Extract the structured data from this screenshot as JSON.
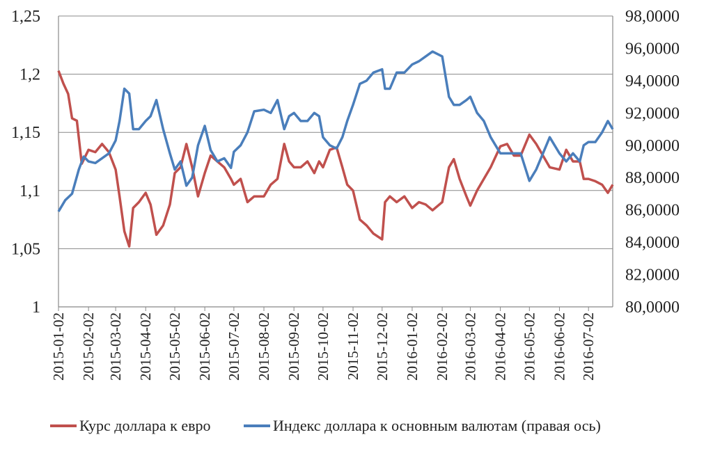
{
  "chart_data": {
    "type": "line",
    "title": "",
    "xlabel": "",
    "x_ticks": [
      "2015-01-02",
      "2015-02-02",
      "2015-03-02",
      "2015-04-02",
      "2015-05-02",
      "2015-06-02",
      "2015-07-02",
      "2015-08-02",
      "2015-09-02",
      "2015-10-02",
      "2015-11-02",
      "2015-12-02",
      "2016-01-02",
      "2016-02-02",
      "2016-03-02",
      "2016-04-02",
      "2016-05-02",
      "2016-06-02",
      "2016-07-02"
    ],
    "x_range": [
      "2015-01-02",
      "2016-07-27"
    ],
    "y_left": {
      "ticks": [
        "1",
        "1,05",
        "1,1",
        "1,15",
        "1,2",
        "1,25"
      ],
      "range": [
        1,
        1.25
      ]
    },
    "y_right": {
      "ticks": [
        "80,0000",
        "82,0000",
        "84,0000",
        "86,0000",
        "88,0000",
        "90,0000",
        "92,0000",
        "94,0000",
        "96,0000",
        "98,0000"
      ],
      "range": [
        80,
        98
      ]
    },
    "grid": {
      "horizontal": true
    },
    "legend": {
      "position": "bottom"
    },
    "series": [
      {
        "name": "Курс доллара к евро",
        "axis": "left",
        "color": "#c0504d",
        "points": [
          [
            "2015-01-02",
            1.203
          ],
          [
            "2015-01-07",
            1.192
          ],
          [
            "2015-01-12",
            1.183
          ],
          [
            "2015-01-16",
            1.162
          ],
          [
            "2015-01-21",
            1.16
          ],
          [
            "2015-01-26",
            1.123
          ],
          [
            "2015-02-02",
            1.135
          ],
          [
            "2015-02-09",
            1.133
          ],
          [
            "2015-02-16",
            1.14
          ],
          [
            "2015-02-23",
            1.133
          ],
          [
            "2015-03-02",
            1.118
          ],
          [
            "2015-03-06",
            1.095
          ],
          [
            "2015-03-11",
            1.065
          ],
          [
            "2015-03-16",
            1.052
          ],
          [
            "2015-03-20",
            1.085
          ],
          [
            "2015-03-26",
            1.09
          ],
          [
            "2015-04-02",
            1.098
          ],
          [
            "2015-04-07",
            1.088
          ],
          [
            "2015-04-13",
            1.062
          ],
          [
            "2015-04-20",
            1.07
          ],
          [
            "2015-04-27",
            1.088
          ],
          [
            "2015-05-02",
            1.115
          ],
          [
            "2015-05-08",
            1.12
          ],
          [
            "2015-05-14",
            1.14
          ],
          [
            "2015-05-20",
            1.12
          ],
          [
            "2015-05-26",
            1.095
          ],
          [
            "2015-06-02",
            1.115
          ],
          [
            "2015-06-08",
            1.13
          ],
          [
            "2015-06-15",
            1.125
          ],
          [
            "2015-06-22",
            1.12
          ],
          [
            "2015-06-29",
            1.11
          ],
          [
            "2015-07-02",
            1.105
          ],
          [
            "2015-07-09",
            1.11
          ],
          [
            "2015-07-16",
            1.09
          ],
          [
            "2015-07-23",
            1.095
          ],
          [
            "2015-08-02",
            1.095
          ],
          [
            "2015-08-09",
            1.105
          ],
          [
            "2015-08-16",
            1.11
          ],
          [
            "2015-08-23",
            1.14
          ],
          [
            "2015-08-28",
            1.125
          ],
          [
            "2015-09-02",
            1.12
          ],
          [
            "2015-09-09",
            1.12
          ],
          [
            "2015-09-16",
            1.125
          ],
          [
            "2015-09-23",
            1.115
          ],
          [
            "2015-09-28",
            1.125
          ],
          [
            "2015-10-02",
            1.12
          ],
          [
            "2015-10-09",
            1.135
          ],
          [
            "2015-10-16",
            1.137
          ],
          [
            "2015-10-22",
            1.12
          ],
          [
            "2015-10-27",
            1.105
          ],
          [
            "2015-11-02",
            1.1
          ],
          [
            "2015-11-09",
            1.075
          ],
          [
            "2015-11-16",
            1.07
          ],
          [
            "2015-11-23",
            1.063
          ],
          [
            "2015-12-02",
            1.058
          ],
          [
            "2015-12-05",
            1.09
          ],
          [
            "2015-12-10",
            1.095
          ],
          [
            "2015-12-17",
            1.09
          ],
          [
            "2015-12-25",
            1.095
          ],
          [
            "2016-01-02",
            1.085
          ],
          [
            "2016-01-09",
            1.09
          ],
          [
            "2016-01-16",
            1.088
          ],
          [
            "2016-01-23",
            1.083
          ],
          [
            "2016-02-02",
            1.09
          ],
          [
            "2016-02-09",
            1.12
          ],
          [
            "2016-02-14",
            1.127
          ],
          [
            "2016-02-20",
            1.11
          ],
          [
            "2016-02-27",
            1.095
          ],
          [
            "2016-03-02",
            1.087
          ],
          [
            "2016-03-09",
            1.1
          ],
          [
            "2016-03-16",
            1.11
          ],
          [
            "2016-03-23",
            1.12
          ],
          [
            "2016-04-02",
            1.138
          ],
          [
            "2016-04-09",
            1.14
          ],
          [
            "2016-04-16",
            1.13
          ],
          [
            "2016-04-23",
            1.13
          ],
          [
            "2016-05-02",
            1.148
          ],
          [
            "2016-05-09",
            1.14
          ],
          [
            "2016-05-16",
            1.13
          ],
          [
            "2016-05-23",
            1.12
          ],
          [
            "2016-06-02",
            1.118
          ],
          [
            "2016-06-09",
            1.135
          ],
          [
            "2016-06-16",
            1.125
          ],
          [
            "2016-06-23",
            1.125
          ],
          [
            "2016-06-27",
            1.11
          ],
          [
            "2016-07-02",
            1.11
          ],
          [
            "2016-07-09",
            1.108
          ],
          [
            "2016-07-16",
            1.105
          ],
          [
            "2016-07-22",
            1.098
          ],
          [
            "2016-07-27",
            1.105
          ]
        ]
      },
      {
        "name": "Индекс доллара к основным валютам (правая ось)",
        "axis": "right",
        "color": "#4a7ebb",
        "points": [
          [
            "2015-01-02",
            85.9
          ],
          [
            "2015-01-09",
            86.6
          ],
          [
            "2015-01-16",
            87.0
          ],
          [
            "2015-01-23",
            88.5
          ],
          [
            "2015-01-28",
            89.3
          ],
          [
            "2015-02-02",
            89.0
          ],
          [
            "2015-02-09",
            88.9
          ],
          [
            "2015-02-16",
            89.2
          ],
          [
            "2015-02-23",
            89.5
          ],
          [
            "2015-03-02",
            90.3
          ],
          [
            "2015-03-06",
            91.5
          ],
          [
            "2015-03-11",
            93.5
          ],
          [
            "2015-03-16",
            93.2
          ],
          [
            "2015-03-20",
            91.0
          ],
          [
            "2015-03-26",
            91.0
          ],
          [
            "2015-04-02",
            91.5
          ],
          [
            "2015-04-07",
            91.8
          ],
          [
            "2015-04-13",
            92.8
          ],
          [
            "2015-04-20",
            91.0
          ],
          [
            "2015-04-27",
            89.5
          ],
          [
            "2015-05-02",
            88.5
          ],
          [
            "2015-05-08",
            89.0
          ],
          [
            "2015-05-14",
            87.5
          ],
          [
            "2015-05-20",
            88.0
          ],
          [
            "2015-05-26",
            90.0
          ],
          [
            "2015-06-02",
            91.2
          ],
          [
            "2015-06-08",
            89.7
          ],
          [
            "2015-06-15",
            89.0
          ],
          [
            "2015-06-22",
            89.2
          ],
          [
            "2015-06-29",
            88.6
          ],
          [
            "2015-07-02",
            89.6
          ],
          [
            "2015-07-09",
            90.0
          ],
          [
            "2015-07-16",
            90.8
          ],
          [
            "2015-07-23",
            92.1
          ],
          [
            "2015-08-02",
            92.2
          ],
          [
            "2015-08-09",
            92.0
          ],
          [
            "2015-08-16",
            92.8
          ],
          [
            "2015-08-23",
            91.0
          ],
          [
            "2015-08-28",
            91.8
          ],
          [
            "2015-09-02",
            92.0
          ],
          [
            "2015-09-09",
            91.5
          ],
          [
            "2015-09-16",
            91.5
          ],
          [
            "2015-09-23",
            92.0
          ],
          [
            "2015-09-28",
            91.8
          ],
          [
            "2015-10-02",
            90.5
          ],
          [
            "2015-10-09",
            90.0
          ],
          [
            "2015-10-16",
            89.8
          ],
          [
            "2015-10-22",
            90.5
          ],
          [
            "2015-10-27",
            91.5
          ],
          [
            "2015-11-02",
            92.5
          ],
          [
            "2015-11-09",
            93.8
          ],
          [
            "2015-11-16",
            94.0
          ],
          [
            "2015-11-23",
            94.5
          ],
          [
            "2015-12-02",
            94.7
          ],
          [
            "2015-12-05",
            93.5
          ],
          [
            "2015-12-10",
            93.5
          ],
          [
            "2015-12-17",
            94.5
          ],
          [
            "2015-12-25",
            94.5
          ],
          [
            "2016-01-02",
            95.0
          ],
          [
            "2016-01-09",
            95.2
          ],
          [
            "2016-01-16",
            95.5
          ],
          [
            "2016-01-23",
            95.8
          ],
          [
            "2016-02-02",
            95.5
          ],
          [
            "2016-02-09",
            93.0
          ],
          [
            "2016-02-14",
            92.5
          ],
          [
            "2016-02-20",
            92.5
          ],
          [
            "2016-02-27",
            92.8
          ],
          [
            "2016-03-02",
            93.0
          ],
          [
            "2016-03-09",
            92.0
          ],
          [
            "2016-03-16",
            91.5
          ],
          [
            "2016-03-23",
            90.5
          ],
          [
            "2016-04-02",
            89.5
          ],
          [
            "2016-04-09",
            89.5
          ],
          [
            "2016-04-16",
            89.5
          ],
          [
            "2016-04-23",
            89.5
          ],
          [
            "2016-05-02",
            87.8
          ],
          [
            "2016-05-09",
            88.5
          ],
          [
            "2016-05-16",
            89.5
          ],
          [
            "2016-05-23",
            90.5
          ],
          [
            "2016-06-02",
            89.5
          ],
          [
            "2016-06-09",
            89.0
          ],
          [
            "2016-06-16",
            89.5
          ],
          [
            "2016-06-23",
            89.0
          ],
          [
            "2016-06-27",
            90.0
          ],
          [
            "2016-07-02",
            90.2
          ],
          [
            "2016-07-09",
            90.2
          ],
          [
            "2016-07-16",
            90.8
          ],
          [
            "2016-07-22",
            91.5
          ],
          [
            "2016-07-27",
            91.0
          ]
        ]
      }
    ]
  }
}
